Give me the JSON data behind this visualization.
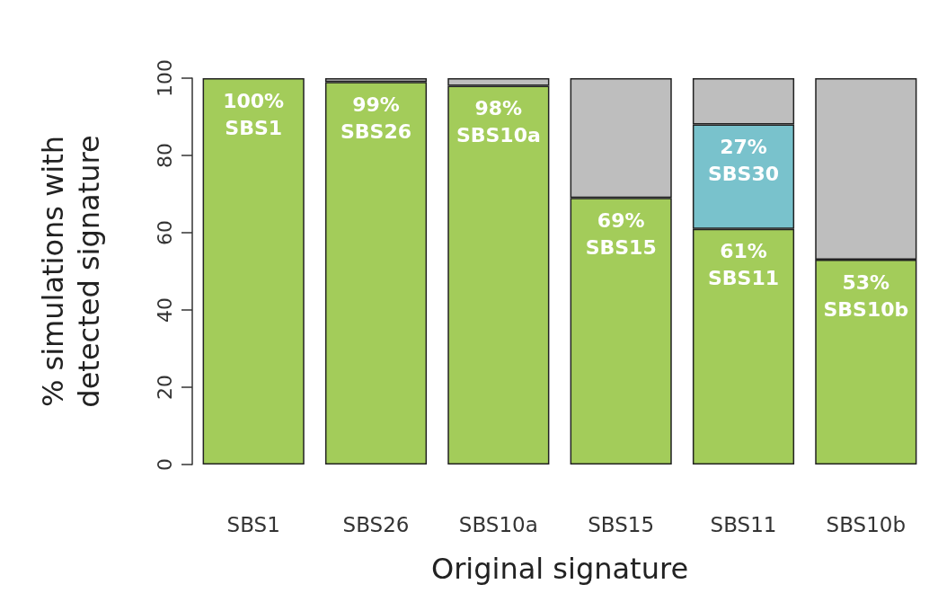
{
  "chart_data": {
    "type": "bar",
    "xlabel": "Original signature",
    "ylabel": "% simulations with\ndetected signature",
    "categories": [
      "SBS1",
      "SBS26",
      "SBS10a",
      "SBS15",
      "SBS11",
      "SBS10b"
    ],
    "stacked": true,
    "ylim": [
      0,
      100
    ],
    "yticks": [
      0,
      20,
      40,
      60,
      80,
      100
    ],
    "grid": false,
    "series": [
      {
        "color": "#a3cc5a",
        "values": [
          100,
          99,
          98,
          69,
          61,
          53
        ],
        "value_labels": [
          "100%\nSBS1",
          "99%\nSBS26",
          "98%\nSBS10a",
          "69%\nSBS15",
          "61%\nSBS11",
          "53%\nSBS10b"
        ]
      },
      {
        "color": "#79c2cc",
        "values": [
          0,
          0,
          0,
          0,
          27,
          0
        ],
        "value_labels": [
          null,
          null,
          null,
          null,
          "27%\nSBS30",
          null
        ]
      },
      {
        "color": "#bebebe",
        "values": [
          0,
          1,
          2,
          31,
          12,
          47
        ]
      }
    ]
  }
}
